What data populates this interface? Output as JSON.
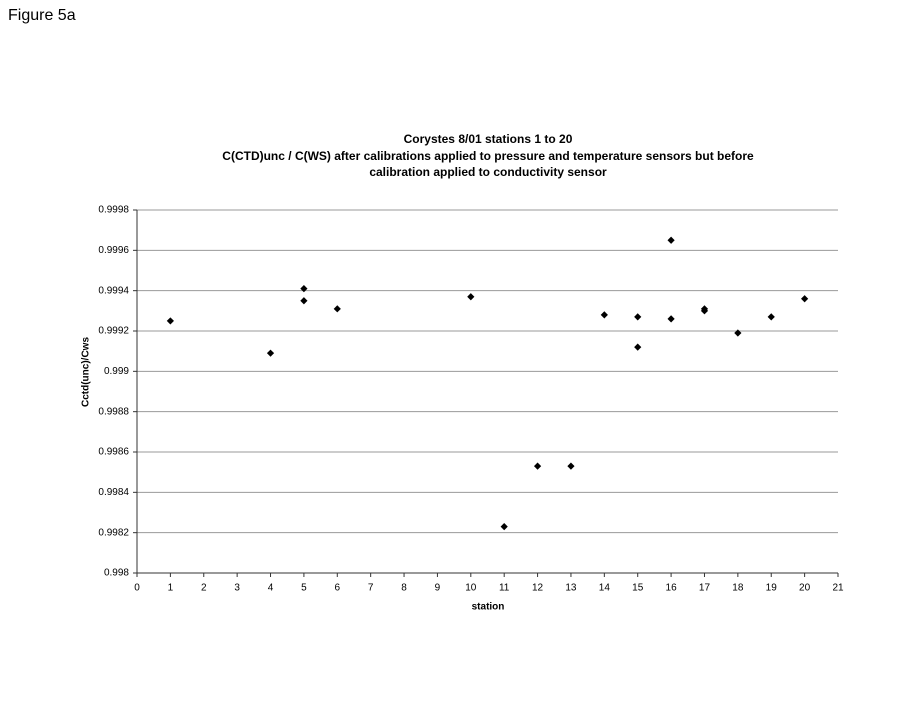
{
  "figure_label": "Figure 5a",
  "chart_data": {
    "type": "scatter",
    "title": [
      "Corystes 8/01 stations 1 to 20",
      "C(CTD)unc / C(WS) after calibrations applied to pressure and temperature sensors but before",
      "calibration applied to conductivity sensor"
    ],
    "x_label": "station",
    "y_label": "Cctd(unc)/Cws",
    "x": [
      1,
      4,
      5,
      5,
      6,
      10,
      11,
      12,
      13,
      14,
      15,
      15,
      16,
      16,
      17,
      17,
      18,
      19,
      20
    ],
    "values": [
      0.99925,
      0.99909,
      0.99941,
      0.99935,
      0.99931,
      0.99937,
      0.99823,
      0.99853,
      0.99853,
      0.99928,
      0.99927,
      0.99912,
      0.99965,
      0.99926,
      0.99931,
      0.9993,
      0.99919,
      0.99927,
      0.99936
    ],
    "color": "#000000",
    "xlim": [
      0,
      21
    ],
    "xticks": [
      0,
      1,
      2,
      3,
      4,
      5,
      6,
      7,
      8,
      9,
      10,
      11,
      12,
      13,
      14,
      15,
      16,
      17,
      18,
      19,
      20,
      21
    ],
    "ylim": [
      0.998,
      0.9998
    ],
    "yticks": [
      0.998,
      0.9982,
      0.9984,
      0.9986,
      0.9988,
      0.999,
      0.9992,
      0.9994,
      0.9996,
      0.9998
    ],
    "grid": true
  }
}
